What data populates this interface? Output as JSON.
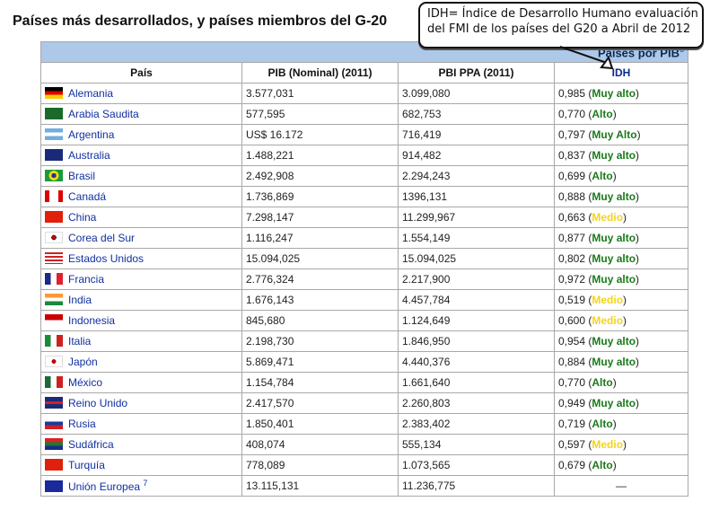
{
  "page_title": "Países más desarrollados, y países miembros del G-20",
  "callout": {
    "line1": "IDH= Índice de Desarrollo Humano evaluación",
    "line2": "del FMI de los países del G20 a Abril de 2012"
  },
  "table": {
    "caption": "Países por PIB",
    "caption_ref": "6",
    "headers": {
      "country": "País",
      "pib": "PIB (Nominal) (2011)",
      "ppa": "PBI PPA (2011)",
      "idh": "IDH"
    },
    "colors": {
      "header_band": "#aec8e8",
      "link": "#1030a0",
      "level_green": "#1a7a1a",
      "level_yellow": "#f4d41a"
    },
    "rows": [
      {
        "country": "Alemania",
        "flag": "germany-flag",
        "pib": "3.577,031",
        "ppa": "3.099,080",
        "idh": "0,985",
        "level": "Muy alto",
        "tone": "green"
      },
      {
        "country": "Arabia Saudita",
        "flag": "saudi-arabia-flag",
        "pib": "577,595",
        "ppa": "682,753",
        "idh": "0,770",
        "level": "Alto",
        "tone": "green"
      },
      {
        "country": "Argentina",
        "flag": "argentina-flag",
        "pib": "US$ 16.172",
        "ppa": "716,419",
        "idh": "0,797",
        "level": "Muy Alto",
        "tone": "green"
      },
      {
        "country": "Australia",
        "flag": "australia-flag",
        "pib": "1.488,221",
        "ppa": "914,482",
        "idh": "0,837",
        "level": "Muy alto",
        "tone": "green"
      },
      {
        "country": "Brasil",
        "flag": "brazil-flag",
        "pib": "2.492,908",
        "ppa": "2.294,243",
        "idh": "0,699",
        "level": "Alto",
        "tone": "green"
      },
      {
        "country": "Canadá",
        "flag": "canada-flag",
        "pib": "1.736,869",
        "ppa": "1396,131",
        "idh": "0,888",
        "level": "Muy alto",
        "tone": "green"
      },
      {
        "country": "China",
        "flag": "china-flag",
        "pib": "7.298,147",
        "ppa": "11.299,967",
        "idh": "0,663",
        "level": "Medio",
        "tone": "yellow"
      },
      {
        "country": "Corea del Sur",
        "flag": "south-korea-flag",
        "pib": "1.116,247",
        "ppa": "1.554,149",
        "idh": "0,877",
        "level": "Muy alto",
        "tone": "green"
      },
      {
        "country": "Estados Unidos",
        "flag": "usa-flag",
        "pib": "15.094,025",
        "ppa": "15.094,025",
        "idh": "0,802",
        "level": "Muy alto",
        "tone": "green"
      },
      {
        "country": "Francia",
        "flag": "france-flag",
        "pib": "2.776,324",
        "ppa": "2.217,900",
        "idh": "0,972",
        "level": "Muy alto",
        "tone": "green"
      },
      {
        "country": "India",
        "flag": "india-flag",
        "pib": "1.676,143",
        "ppa": "4.457,784",
        "idh": "0,519",
        "level": "Medio",
        "tone": "yellow"
      },
      {
        "country": "Indonesia",
        "flag": "indonesia-flag",
        "pib": "845,680",
        "ppa": "1.124,649",
        "idh": "0,600",
        "level": "Medio",
        "tone": "yellow"
      },
      {
        "country": "Italia",
        "flag": "italy-flag",
        "pib": "2.198,730",
        "ppa": "1.846,950",
        "idh": "0,954",
        "level": "Muy alto",
        "tone": "green"
      },
      {
        "country": "Japón",
        "flag": "japan-flag",
        "pib": "5.869,471",
        "ppa": "4.440,376",
        "idh": "0,884",
        "level": "Muy alto",
        "tone": "green"
      },
      {
        "country": "México",
        "flag": "mexico-flag",
        "pib": "1.154,784",
        "ppa": "1.661,640",
        "idh": "0,770",
        "level": "Alto",
        "tone": "green"
      },
      {
        "country": "Reino Unido",
        "flag": "uk-flag",
        "pib": "2.417,570",
        "ppa": "2.260,803",
        "idh": "0,949",
        "level": "Muy alto",
        "tone": "green"
      },
      {
        "country": "Rusia",
        "flag": "russia-flag",
        "pib": "1.850,401",
        "ppa": "2.383,402",
        "idh": "0,719",
        "level": "Alto",
        "tone": "green"
      },
      {
        "country": "Sudáfrica",
        "flag": "south-africa-flag",
        "pib": "408,074",
        "ppa": "555,134",
        "idh": "0,597",
        "level": "Medio",
        "tone": "yellow"
      },
      {
        "country": "Turquía",
        "flag": "turkey-flag",
        "pib": "778,089",
        "ppa": "1.073,565",
        "idh": "0,679",
        "level": "Alto",
        "tone": "green"
      },
      {
        "country": "Unión Europea",
        "flag": "eu-flag",
        "country_ref": "7",
        "pib": "13.115,131",
        "ppa": "11.236,775",
        "idh_dash": "—"
      }
    ]
  }
}
